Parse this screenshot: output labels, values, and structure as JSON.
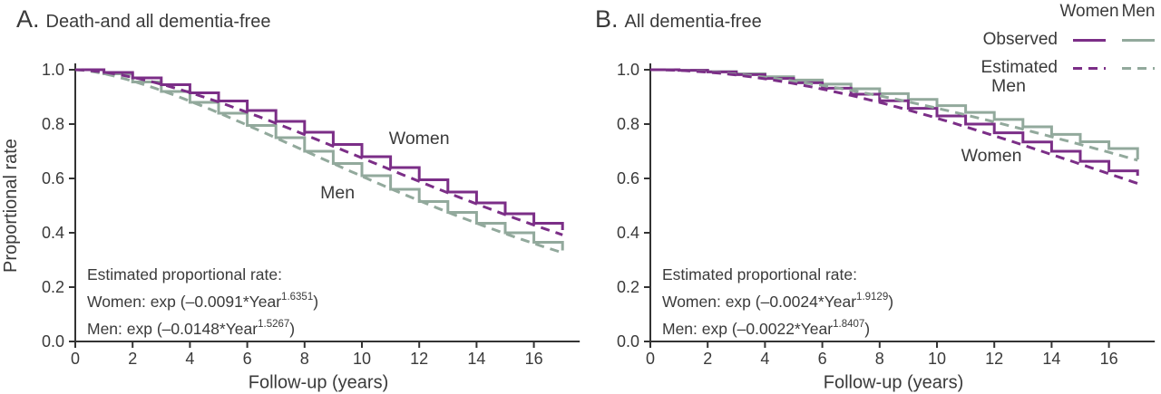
{
  "colors": {
    "women": "#7B2E87",
    "men": "#92A99C",
    "text": "#3A3A3A",
    "axis": "#333333"
  },
  "legend": {
    "col_headers": [
      "Women",
      "Men"
    ],
    "row_labels": [
      "Observed",
      "Estimated"
    ]
  },
  "panels": [
    {
      "title_prefix": "A.",
      "title": "Death-and all dementia-free",
      "annotation": {
        "title": "Estimated proportional rate:",
        "women": {
          "prefix": "Women: exp (–0.0091*Year",
          "sup": "1.6351",
          "suffix": ")"
        },
        "men": {
          "prefix": "Men: exp (–0.0148*Year",
          "sup": "1.5267",
          "suffix": ")"
        }
      }
    },
    {
      "title_prefix": "B.",
      "title": "All dementia-free",
      "annotation": {
        "title": "Estimated proportional rate:",
        "women": {
          "prefix": "Women: exp (–0.0024*Year",
          "sup": "1.9129",
          "suffix": ")"
        },
        "men": {
          "prefix": "Men: exp (–0.0022*Year",
          "sup": "1.8407",
          "suffix": ")"
        }
      }
    }
  ],
  "chart_data": [
    {
      "type": "line",
      "title": "A. Death-and all dementia-free",
      "xlabel": "Follow-up (years)",
      "ylabel": "Proportional rate",
      "xlim": [
        0,
        17.6
      ],
      "ylim": [
        0,
        1.0
      ],
      "x_ticks": [
        0,
        2,
        4,
        6,
        8,
        10,
        12,
        14,
        16
      ],
      "y_ticks": [
        0.0,
        0.2,
        0.4,
        0.6,
        0.8,
        1.0
      ],
      "step_years": [
        0,
        1,
        2,
        3,
        4,
        5,
        6,
        7,
        8,
        9,
        10,
        11,
        12,
        13,
        14,
        15,
        16,
        17
      ],
      "series": [
        {
          "name": "Men observed",
          "group": "men",
          "style": "step",
          "values": [
            1.0,
            0.985,
            0.955,
            0.92,
            0.88,
            0.84,
            0.795,
            0.75,
            0.7,
            0.655,
            0.61,
            0.56,
            0.515,
            0.475,
            0.435,
            0.4,
            0.365,
            0.335
          ]
        },
        {
          "name": "Women observed",
          "group": "women",
          "style": "step",
          "values": [
            1.0,
            0.99,
            0.97,
            0.945,
            0.915,
            0.885,
            0.85,
            0.81,
            0.77,
            0.725,
            0.68,
            0.64,
            0.595,
            0.55,
            0.51,
            0.47,
            0.435,
            0.41
          ]
        },
        {
          "name": "Men estimated",
          "group": "men",
          "style": "dashed",
          "formula": {
            "expr": "exp(-c*t^p)",
            "c": 0.0148,
            "p": 1.5267
          }
        },
        {
          "name": "Women estimated",
          "group": "women",
          "style": "dashed",
          "formula": {
            "expr": "exp(-c*t^p)",
            "c": 0.0091,
            "p": 1.6351
          }
        }
      ],
      "inplot_labels": [
        {
          "text": "Women",
          "year": 12.0,
          "value": 0.747
        },
        {
          "text": "Men",
          "year": 9.15,
          "value": 0.547
        }
      ]
    },
    {
      "type": "line",
      "title": "B. All dementia-free",
      "xlabel": "Follow-up (years)",
      "ylabel": "",
      "xlim": [
        0,
        17.6
      ],
      "ylim": [
        0,
        1.0
      ],
      "x_ticks": [
        0,
        2,
        4,
        6,
        8,
        10,
        12,
        14,
        16
      ],
      "y_ticks": [
        0.0,
        0.2,
        0.4,
        0.6,
        0.8,
        1.0
      ],
      "step_years": [
        0,
        1,
        2,
        3,
        4,
        5,
        6,
        7,
        8,
        9,
        10,
        11,
        12,
        13,
        14,
        15,
        16,
        17
      ],
      "series": [
        {
          "name": "Men observed",
          "group": "men",
          "style": "step",
          "values": [
            1.0,
            0.998,
            0.993,
            0.985,
            0.974,
            0.962,
            0.947,
            0.93,
            0.912,
            0.891,
            0.868,
            0.843,
            0.817,
            0.79,
            0.762,
            0.735,
            0.71,
            0.67
          ]
        },
        {
          "name": "Women observed",
          "group": "women",
          "style": "step",
          "values": [
            1.0,
            0.998,
            0.992,
            0.982,
            0.968,
            0.952,
            0.932,
            0.91,
            0.886,
            0.858,
            0.83,
            0.8,
            0.768,
            0.734,
            0.7,
            0.663,
            0.628,
            0.61
          ]
        },
        {
          "name": "Men estimated",
          "group": "men",
          "style": "dashed",
          "formula": {
            "expr": "exp(-c*t^p)",
            "c": 0.0022,
            "p": 1.8407
          }
        },
        {
          "name": "Women estimated",
          "group": "women",
          "style": "dashed",
          "formula": {
            "expr": "exp(-c*t^p)",
            "c": 0.0024,
            "p": 1.9129
          }
        }
      ],
      "inplot_labels": [
        {
          "text": "Men",
          "year": 12.5,
          "value": 0.94
        },
        {
          "text": "Women",
          "year": 11.9,
          "value": 0.683
        }
      ]
    }
  ]
}
